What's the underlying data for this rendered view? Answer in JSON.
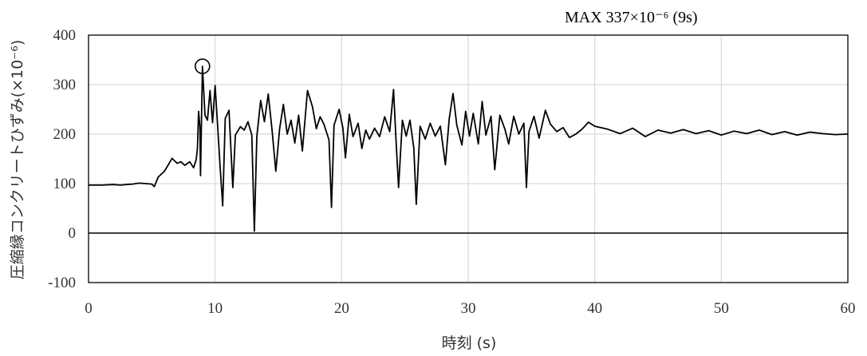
{
  "chart_data": {
    "type": "line",
    "title": "",
    "xlabel": "時刻 (s)",
    "ylabel": "圧縮縁コンクリートひずみ(×10⁻⁶)",
    "xlim": [
      0,
      60
    ],
    "ylim": [
      -100,
      400
    ],
    "x_ticks": [
      0,
      10,
      20,
      30,
      40,
      50,
      60
    ],
    "y_ticks": [
      -100,
      0,
      100,
      200,
      300,
      400
    ],
    "x_tick_labels": [
      "0",
      "10",
      "20",
      "30",
      "40",
      "50",
      "60"
    ],
    "y_tick_labels": [
      "-100",
      "0",
      "100",
      "200",
      "300",
      "400"
    ],
    "grid": true,
    "line_color": "#000000",
    "grid_color": "#d9d9d9",
    "annotation": {
      "text": "MAX  337×10⁻⁶ (9s)",
      "x": 9,
      "y": 337
    },
    "series": [
      {
        "points": [
          [
            0,
            97
          ],
          [
            1,
            97
          ],
          [
            2,
            98
          ],
          [
            2.5,
            97
          ],
          [
            3,
            98
          ],
          [
            3.5,
            99
          ],
          [
            4,
            101
          ],
          [
            4.5,
            100
          ],
          [
            5,
            99
          ],
          [
            5.2,
            94
          ],
          [
            5.5,
            113
          ],
          [
            6,
            125
          ],
          [
            6.3,
            138
          ],
          [
            6.6,
            151
          ],
          [
            7,
            141
          ],
          [
            7.3,
            144
          ],
          [
            7.6,
            137
          ],
          [
            8,
            144
          ],
          [
            8.3,
            132
          ],
          [
            8.5,
            148
          ],
          [
            8.6,
            170
          ],
          [
            8.7,
            246
          ],
          [
            8.8,
            215
          ],
          [
            8.85,
            116
          ],
          [
            8.95,
            262
          ],
          [
            9,
            337
          ],
          [
            9.2,
            238
          ],
          [
            9.4,
            228
          ],
          [
            9.6,
            288
          ],
          [
            9.8,
            223
          ],
          [
            10,
            298
          ],
          [
            10.2,
            218
          ],
          [
            10.4,
            133
          ],
          [
            10.6,
            55
          ],
          [
            10.8,
            232
          ],
          [
            11.1,
            248
          ],
          [
            11.4,
            92
          ],
          [
            11.6,
            198
          ],
          [
            12,
            215
          ],
          [
            12.3,
            208
          ],
          [
            12.6,
            225
          ],
          [
            12.9,
            198
          ],
          [
            13.1,
            4
          ],
          [
            13.3,
            195
          ],
          [
            13.6,
            268
          ],
          [
            13.9,
            225
          ],
          [
            14.2,
            281
          ],
          [
            14.5,
            208
          ],
          [
            14.8,
            125
          ],
          [
            15.1,
            211
          ],
          [
            15.4,
            260
          ],
          [
            15.7,
            200
          ],
          [
            16,
            228
          ],
          [
            16.3,
            182
          ],
          [
            16.6,
            238
          ],
          [
            16.9,
            166
          ],
          [
            17.3,
            288
          ],
          [
            17.7,
            255
          ],
          [
            18,
            211
          ],
          [
            18.3,
            235
          ],
          [
            18.6,
            220
          ],
          [
            19,
            188
          ],
          [
            19.2,
            52
          ],
          [
            19.4,
            218
          ],
          [
            19.8,
            250
          ],
          [
            20.1,
            212
          ],
          [
            20.3,
            152
          ],
          [
            20.6,
            240
          ],
          [
            20.9,
            195
          ],
          [
            21.3,
            222
          ],
          [
            21.6,
            171
          ],
          [
            21.9,
            208
          ],
          [
            22.2,
            190
          ],
          [
            22.6,
            212
          ],
          [
            23,
            195
          ],
          [
            23.4,
            235
          ],
          [
            23.8,
            205
          ],
          [
            24.1,
            290
          ],
          [
            24.3,
            185
          ],
          [
            24.5,
            92
          ],
          [
            24.8,
            228
          ],
          [
            25.1,
            196
          ],
          [
            25.4,
            228
          ],
          [
            25.7,
            172
          ],
          [
            25.9,
            58
          ],
          [
            26.2,
            216
          ],
          [
            26.6,
            190
          ],
          [
            27,
            222
          ],
          [
            27.4,
            196
          ],
          [
            27.8,
            216
          ],
          [
            28.2,
            138
          ],
          [
            28.5,
            231
          ],
          [
            28.8,
            282
          ],
          [
            29.1,
            218
          ],
          [
            29.5,
            178
          ],
          [
            29.8,
            246
          ],
          [
            30.1,
            196
          ],
          [
            30.4,
            242
          ],
          [
            30.8,
            180
          ],
          [
            31.1,
            266
          ],
          [
            31.4,
            198
          ],
          [
            31.8,
            236
          ],
          [
            32.1,
            128
          ],
          [
            32.5,
            238
          ],
          [
            32.9,
            210
          ],
          [
            33.2,
            180
          ],
          [
            33.6,
            236
          ],
          [
            34,
            200
          ],
          [
            34.4,
            222
          ],
          [
            34.6,
            92
          ],
          [
            34.8,
            205
          ],
          [
            35.2,
            236
          ],
          [
            35.6,
            192
          ],
          [
            36.1,
            248
          ],
          [
            36.5,
            220
          ],
          [
            37,
            205
          ],
          [
            37.5,
            213
          ],
          [
            38,
            193
          ],
          [
            38.5,
            200
          ],
          [
            39,
            210
          ],
          [
            39.5,
            224
          ],
          [
            40,
            216
          ],
          [
            41,
            210
          ],
          [
            42,
            201
          ],
          [
            43,
            212
          ],
          [
            44,
            195
          ],
          [
            45,
            208
          ],
          [
            46,
            202
          ],
          [
            47,
            209
          ],
          [
            48,
            201
          ],
          [
            49,
            207
          ],
          [
            50,
            198
          ],
          [
            51,
            206
          ],
          [
            52,
            201
          ],
          [
            53,
            208
          ],
          [
            54,
            199
          ],
          [
            55,
            205
          ],
          [
            56,
            198
          ],
          [
            57,
            204
          ],
          [
            58,
            201
          ],
          [
            59,
            199
          ],
          [
            60,
            200
          ]
        ]
      }
    ]
  }
}
